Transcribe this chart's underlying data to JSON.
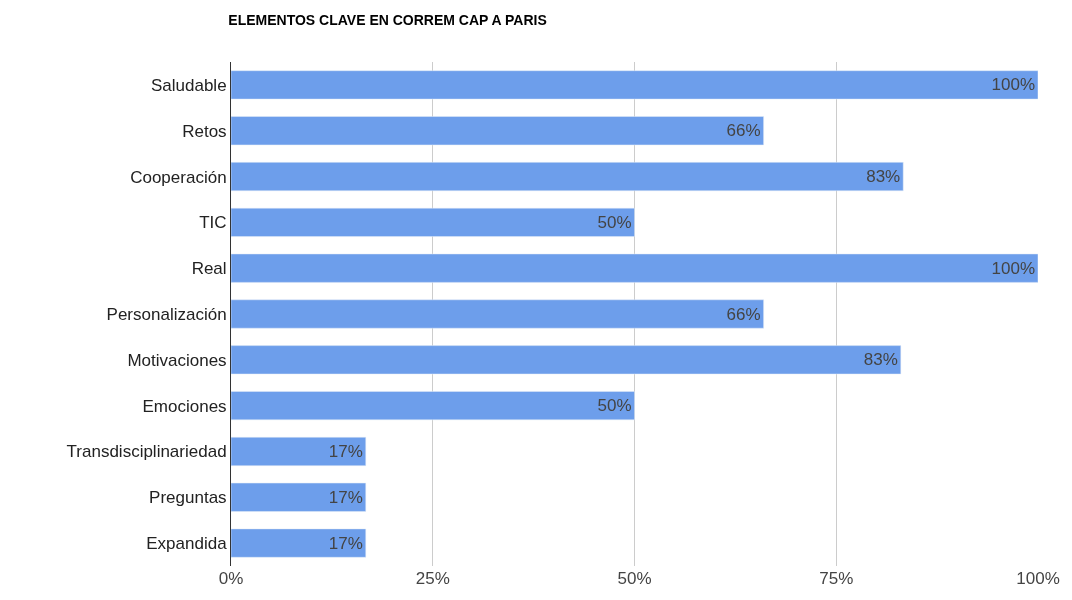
{
  "chart_data": {
    "type": "bar",
    "orientation": "horizontal",
    "title": "ELEMENTOS CLAVE EN CORREM CAP A PARIS",
    "categories": [
      "Saludable",
      "Retos",
      "Cooperación",
      "TIC",
      "Real",
      "Personalización",
      "Motivaciones",
      "Emociones",
      "Transdisciplinariedad",
      "Preguntas",
      "Expandida"
    ],
    "values": [
      100,
      66,
      83.3,
      50,
      100,
      66,
      83,
      50,
      16.7,
      16.7,
      16.7
    ],
    "value_labels": [
      "100%",
      "66%",
      "83%",
      "50%",
      "100%",
      "66%",
      "83%",
      "50%",
      "17%",
      "17%",
      "17%"
    ],
    "color": "#6d9eeb",
    "xlim": [
      0,
      100
    ],
    "xticks": [
      {
        "value": 0,
        "label": "0%"
      },
      {
        "value": 25,
        "label": "25%"
      },
      {
        "value": 50,
        "label": "50%"
      },
      {
        "value": 75,
        "label": "75%"
      },
      {
        "value": 100,
        "label": "100%"
      }
    ],
    "grid": "x"
  }
}
